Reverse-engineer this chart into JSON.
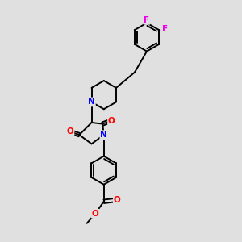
{
  "background_color": "#e0e0e0",
  "bond_color": "#000000",
  "N_color": "#0000ff",
  "O_color": "#ff0000",
  "F_color": "#ee00ee",
  "lw": 1.4,
  "figsize": [
    3.0,
    3.0
  ],
  "dpi": 100,
  "xlim": [
    -2.0,
    2.5
  ],
  "ylim": [
    -4.5,
    3.0
  ]
}
